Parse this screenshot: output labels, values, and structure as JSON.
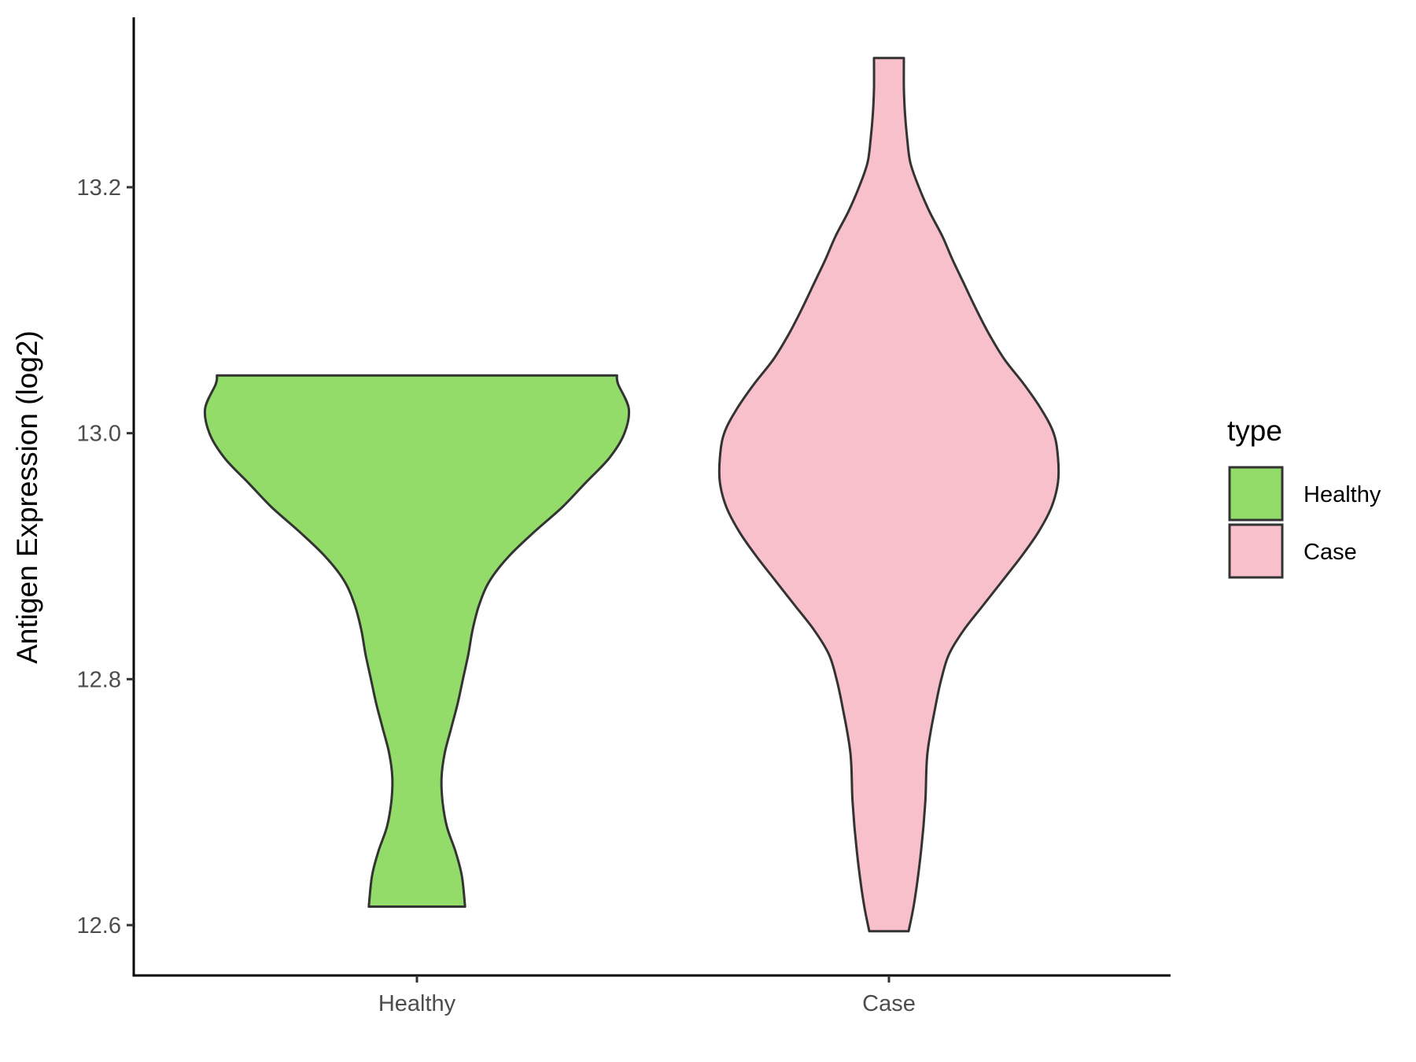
{
  "chart_data": {
    "type": "violin",
    "title": "",
    "xlabel": "",
    "ylabel": "Antigen Expression (log2)",
    "categories": [
      "Healthy",
      "Case"
    ],
    "y_ticks": [
      "12.6",
      "12.8",
      "13.0",
      "13.2"
    ],
    "ylim": [
      12.56,
      13.34
    ],
    "grid": false,
    "legend": {
      "title": "type",
      "position": "right",
      "entries": [
        {
          "label": "Healthy",
          "color": "#93dc6a"
        },
        {
          "label": "Case",
          "color": "#f7c0cb"
        }
      ]
    },
    "series": [
      {
        "category": "Healthy",
        "color": "#93dc6a",
        "y_min": 12.615,
        "y_max": 13.047,
        "density_profile": [
          [
            12.615,
            0.225
          ],
          [
            12.64,
            0.21
          ],
          [
            12.66,
            0.18
          ],
          [
            12.68,
            0.14
          ],
          [
            12.7,
            0.12
          ],
          [
            12.72,
            0.115
          ],
          [
            12.74,
            0.13
          ],
          [
            12.76,
            0.16
          ],
          [
            12.78,
            0.19
          ],
          [
            12.8,
            0.215
          ],
          [
            12.82,
            0.24
          ],
          [
            12.84,
            0.26
          ],
          [
            12.86,
            0.29
          ],
          [
            12.88,
            0.34
          ],
          [
            12.9,
            0.43
          ],
          [
            12.92,
            0.55
          ],
          [
            12.94,
            0.68
          ],
          [
            12.96,
            0.79
          ],
          [
            12.98,
            0.9
          ],
          [
            13.0,
            0.97
          ],
          [
            13.02,
            0.99
          ],
          [
            13.04,
            0.94
          ],
          [
            13.047,
            0.935
          ]
        ]
      },
      {
        "category": "Case",
        "color": "#f7c0cb",
        "y_min": 12.595,
        "y_max": 13.305,
        "density_profile": [
          [
            12.595,
            0.092
          ],
          [
            12.62,
            0.12
          ],
          [
            12.66,
            0.15
          ],
          [
            12.7,
            0.17
          ],
          [
            12.74,
            0.18
          ],
          [
            12.78,
            0.22
          ],
          [
            12.8,
            0.245
          ],
          [
            12.82,
            0.28
          ],
          [
            12.84,
            0.35
          ],
          [
            12.86,
            0.44
          ],
          [
            12.88,
            0.53
          ],
          [
            12.9,
            0.62
          ],
          [
            12.92,
            0.7
          ],
          [
            12.94,
            0.76
          ],
          [
            12.96,
            0.79
          ],
          [
            12.98,
            0.79
          ],
          [
            13.0,
            0.77
          ],
          [
            13.02,
            0.71
          ],
          [
            13.04,
            0.63
          ],
          [
            13.06,
            0.54
          ],
          [
            13.08,
            0.47
          ],
          [
            13.1,
            0.41
          ],
          [
            13.12,
            0.355
          ],
          [
            13.14,
            0.3
          ],
          [
            13.16,
            0.25
          ],
          [
            13.18,
            0.19
          ],
          [
            13.2,
            0.14
          ],
          [
            13.22,
            0.1
          ],
          [
            13.24,
            0.085
          ],
          [
            13.26,
            0.075
          ],
          [
            13.28,
            0.07
          ],
          [
            13.305,
            0.07
          ]
        ]
      }
    ]
  }
}
